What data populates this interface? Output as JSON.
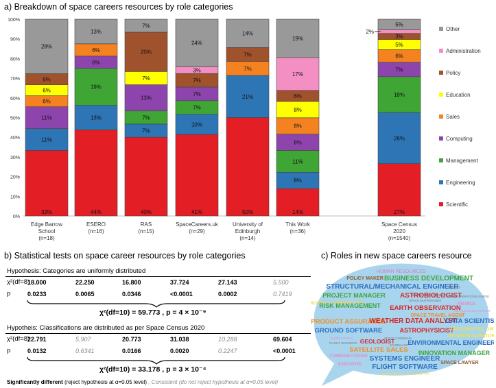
{
  "panel_a": {
    "title": "a) Breakdown of space careers resources by role categories"
  },
  "panel_b": {
    "title": "b) Statistical tests on space career resources by role categories",
    "hyp1": {
      "text": "Hypothesis: Categories are uniformly distributed",
      "chi_label": "χ²(df=8)",
      "p_label": "p",
      "chi_values": [
        {
          "value": "18.000",
          "significant": true
        },
        {
          "value": "22.250",
          "significant": true
        },
        {
          "value": "16.800",
          "significant": true
        },
        {
          "value": "37.724",
          "significant": true
        },
        {
          "value": "27.143",
          "significant": true
        },
        {
          "value": "5.500",
          "significant": false
        }
      ],
      "p_values": [
        {
          "value": "0.0233",
          "significant": true
        },
        {
          "value": "0.0065",
          "significant": true
        },
        {
          "value": "0.0346",
          "significant": true
        },
        {
          "value": "<0.0001",
          "significant": true
        },
        {
          "value": "0.0002",
          "significant": true
        },
        {
          "value": "0.7419",
          "significant": false
        }
      ],
      "combined": "χ²(df=10) = 59.773 , p = 4 × 10⁻⁹"
    },
    "hyp2": {
      "text": "Hypotheis: Classifications are distributed as per Space Census 2020",
      "chi_label": "χ²(df=8)",
      "p_label": "p",
      "chi_values": [
        {
          "value": "22.791",
          "significant": true
        },
        {
          "value": "5.907",
          "significant": false
        },
        {
          "value": "20.773",
          "significant": true
        },
        {
          "value": "31.038",
          "significant": true
        },
        {
          "value": "10.288",
          "significant": false
        },
        {
          "value": "69.604",
          "significant": true
        }
      ],
      "p_values": [
        {
          "value": "0.0132",
          "significant": true
        },
        {
          "value": "0.6341",
          "significant": false
        },
        {
          "value": "0.0166",
          "significant": true
        },
        {
          "value": "0.0020",
          "significant": true
        },
        {
          "value": "0.2247",
          "significant": false
        },
        {
          "value": "<0.0001",
          "significant": true
        }
      ],
      "combined": "χ²(df=10) = 33.178 , p = 3 × 10⁻⁴"
    },
    "footnote_sig_bold": "Significantly different",
    "footnote_sig_rest": " (reject hypothesis at α=0.05 level)",
    "footnote_ns": " , Consistent (do not reject hypothesis at α=0.05 level)"
  },
  "panel_c": {
    "title": "c) Roles in new space careers resource",
    "words": [
      {
        "text": "HUMAN RESOURCES",
        "color": "#d77fb7"
      },
      {
        "text": "POLICY MAKER",
        "color": "#8b5a2b"
      },
      {
        "text": "BUSINESS DEVELOPMENT",
        "color": "#3aa63a"
      },
      {
        "text": "STRUCTURAL/MECHANICAL ENGINEER",
        "color": "#2e6fbe"
      },
      {
        "text": "ARTIST",
        "color": "#777777"
      },
      {
        "text": "SPACE PSYCHOLOGIST",
        "color": "#777777"
      },
      {
        "text": "PROJECT MANAGER",
        "color": "#3aa63a"
      },
      {
        "text": "ASTROBIOLOGIST",
        "color": "#d42a2a"
      },
      {
        "text": "SCIENCE COMMUNICATOR",
        "color": "#e8d44a"
      },
      {
        "text": "SPACE NUTRITIONIST",
        "color": "#777777"
      },
      {
        "text": "SPACE OPERATIONS NURSE",
        "color": "#777777"
      },
      {
        "text": "RISK MANAGEMENT",
        "color": "#3aa63a"
      },
      {
        "text": "EARTH OBSERVATION",
        "color": "#d42a2a"
      },
      {
        "text": "FINANCE",
        "color": "#e989c4"
      },
      {
        "text": "SPACE TRAVEL AGENT",
        "color": "#f28c1e"
      },
      {
        "text": "TECHNICAL RECRUITER",
        "color": "#e989c4"
      },
      {
        "text": "PRODUCT ASSURANCE",
        "color": "#f28c1e"
      },
      {
        "text": "WEATHER DATA ANALYST",
        "color": "#d42a2a"
      },
      {
        "text": "DATA SCIENTIST",
        "color": "#2e6fbe"
      },
      {
        "text": "GROUND SOFTWARE",
        "color": "#2e6fbe"
      },
      {
        "text": "ASTROPHYSICIST",
        "color": "#d42a2a"
      },
      {
        "text": "TEACHING FELLOW",
        "color": "#f2e23a"
      },
      {
        "text": "MUSEUM CURATOR",
        "color": "#f2e23a"
      },
      {
        "text": "SUPPLY CHAIN",
        "color": "#e989c4"
      },
      {
        "text": "GEOLOGIST",
        "color": "#d42a2a"
      },
      {
        "text": "SPACE COMMAND",
        "color": "#777777"
      },
      {
        "text": "FLIGHT SURGEON",
        "color": "#777777"
      },
      {
        "text": "JOURNALIST",
        "color": "#777777"
      },
      {
        "text": "ENVIRONMENTAL ENGINEER",
        "color": "#2e6fbe"
      },
      {
        "text": "SATELLITE SALES",
        "color": "#f28c1e"
      },
      {
        "text": "INNOVATION MANAGER",
        "color": "#3aa63a"
      },
      {
        "text": "COMMUNICATIONS",
        "color": "#e989c4"
      },
      {
        "text": "SYSTEMS ENGINEER",
        "color": "#2e6fbe"
      },
      {
        "text": "SPACE LAWYER",
        "color": "#8b5a2b"
      },
      {
        "text": "EXECUTIVE",
        "color": "#e989c4"
      },
      {
        "text": "FLIGHT SOFTWARE",
        "color": "#2e6fbe"
      },
      {
        "text": "INDEPENDENT COST ESTIMATOR",
        "color": "#f2e23a"
      }
    ]
  },
  "chart_data": {
    "type": "bar",
    "title": "a) Breakdown of space careers resources by role categories",
    "stacked": true,
    "normalized": true,
    "categories": [
      "Edge Barrow School (n=18)",
      "ESERO (n=16)",
      "RAS (n=15)",
      "SpaceCareers.uk (n=29)",
      "University of Edinburgh (n=14)",
      "This Work (n=36)",
      "Space Census 2020 (n=1540)"
    ],
    "category_lines": [
      [
        "Edge Barrow",
        "School",
        "(n=18)"
      ],
      [
        "ESERO",
        "(n=16)"
      ],
      [
        "RAS",
        "(n=15)"
      ],
      [
        "SpaceCareers.uk",
        "(n=29)"
      ],
      [
        "University of",
        "Edinburgh",
        "(n=14)"
      ],
      [
        "This Work",
        "(n=36)"
      ],
      [
        "Space Census",
        "2020",
        "(n=1540)"
      ]
    ],
    "ylim": [
      0,
      100
    ],
    "yticks": [
      0,
      10,
      20,
      30,
      40,
      50,
      60,
      70,
      80,
      90,
      100
    ],
    "ytick_suffix": "%",
    "series": [
      {
        "name": "Scientific",
        "color": "#e31e24",
        "values": [
          33.3,
          43.75,
          40.0,
          41.4,
          50.0,
          13.9,
          26.6
        ]
      },
      {
        "name": "Engineering",
        "color": "#2e75b6",
        "values": [
          11.1,
          12.5,
          6.7,
          10.3,
          21.4,
          8.3,
          26.0
        ]
      },
      {
        "name": "Management",
        "color": "#3fa535",
        "values": [
          0,
          18.75,
          6.7,
          6.9,
          0,
          11.1,
          18.2
        ]
      },
      {
        "name": "Computing",
        "color": "#8e44ad",
        "values": [
          11.1,
          6.25,
          13.3,
          6.9,
          0,
          8.3,
          7.3
        ]
      },
      {
        "name": "Sales",
        "color": "#f58220",
        "values": [
          5.6,
          6.25,
          0,
          0,
          7.1,
          8.3,
          6.4
        ]
      },
      {
        "name": "Education",
        "color": "#ffff00",
        "values": [
          5.6,
          0,
          6.7,
          0,
          0,
          8.3,
          5.2
        ]
      },
      {
        "name": "Policy",
        "color": "#a0522d",
        "values": [
          5.6,
          0,
          20.0,
          6.9,
          7.1,
          5.6,
          3.1
        ]
      },
      {
        "name": "Administration",
        "color": "#f48fc4",
        "values": [
          0,
          0,
          0,
          3.4,
          0,
          16.7,
          1.8
        ]
      },
      {
        "name": "Other",
        "color": "#999999",
        "values": [
          27.7,
          12.5,
          6.6,
          24.2,
          14.4,
          19.5,
          5.4
        ]
      }
    ],
    "data_labels": [
      [
        "33%",
        "11%",
        "",
        "11%",
        "6%",
        "6%",
        "6%",
        "",
        "28%"
      ],
      [
        "44%",
        "13%",
        "19%",
        "6%",
        "6%",
        "",
        "",
        "",
        "13%"
      ],
      [
        "40%",
        "7%",
        "7%",
        "13%",
        "",
        "7%",
        "20%",
        "",
        "7%"
      ],
      [
        "41%",
        "10%",
        "7%",
        "7%",
        "",
        "",
        "7%",
        "3%",
        "24%"
      ],
      [
        "50%",
        "21%",
        "",
        "",
        "7%",
        "",
        "7%",
        "",
        "14%"
      ],
      [
        "14%",
        "8%",
        "11%",
        "8%",
        "8%",
        "8%",
        "6%",
        "17%",
        "19%"
      ],
      [
        "27%",
        "26%",
        "18%",
        "7%",
        "6%",
        "5%",
        "3%",
        "2%",
        "5%"
      ]
    ],
    "legend_order": [
      "Other",
      "Administration",
      "Policy",
      "Education",
      "Sales",
      "Computing",
      "Management",
      "Engineering",
      "Scientific"
    ],
    "legend_position": "right"
  }
}
